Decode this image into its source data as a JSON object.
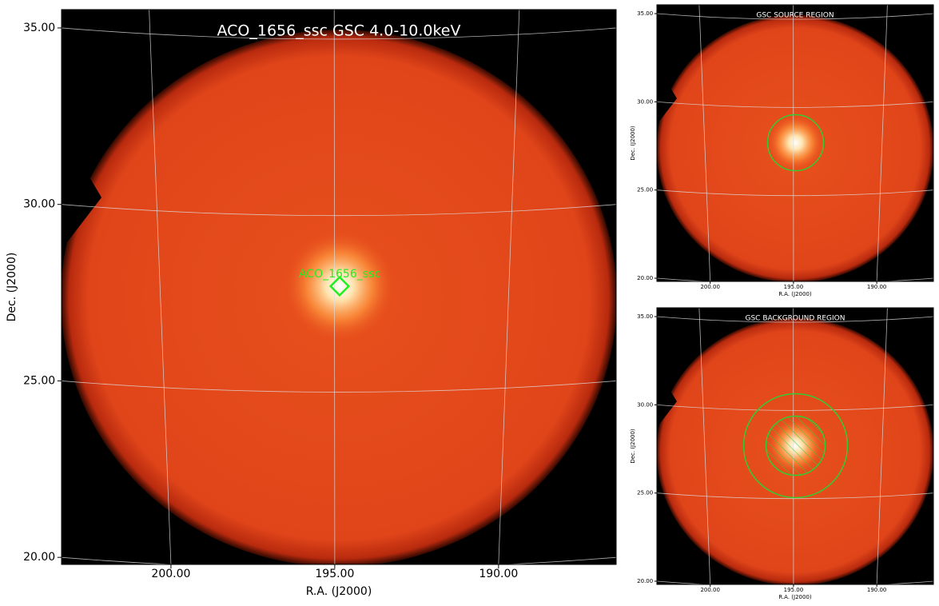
{
  "panels": [
    {
      "title": "ACO_1656_ssc GSC 4.0-10.0keV",
      "source_label": "ACO_1656_ssc",
      "xlabel": "R.A. (J2000)",
      "ylabel": "Dec. (J2000)",
      "xlim": [
        203.34,
        186.41
      ],
      "ylim": [
        19.8,
        35.52
      ],
      "xticks": [
        {
          "value": 200,
          "label": "200.00"
        },
        {
          "value": 195,
          "label": "195.00"
        },
        {
          "value": 190,
          "label": "190.00"
        }
      ],
      "yticks": [
        {
          "value": 20,
          "label": "20.00"
        },
        {
          "value": 25,
          "label": "25.00"
        },
        {
          "value": 30,
          "label": "30.00"
        },
        {
          "value": 35,
          "label": "35.00"
        }
      ]
    },
    {
      "title": "GSC SOURCE REGION",
      "xlabel": "R.A. (J2000)",
      "ylabel": "Dec. (J2000)",
      "xlim": [
        203.2,
        186.6
      ],
      "ylim": [
        19.82,
        35.5
      ],
      "xticks": [
        {
          "value": 200,
          "label": "200.00"
        },
        {
          "value": 195,
          "label": "195.00"
        },
        {
          "value": 190,
          "label": "190.00"
        }
      ],
      "yticks": [
        {
          "value": 20,
          "label": "20.00"
        },
        {
          "value": 25,
          "label": "25.00"
        },
        {
          "value": 30,
          "label": "30.00"
        },
        {
          "value": 35,
          "label": "35.00"
        }
      ]
    },
    {
      "title": "GSC BACKGROUND REGION",
      "xlabel": "R.A. (J2000)",
      "ylabel": "Dec. (J2000)",
      "xlim": [
        203.2,
        186.6
      ],
      "ylim": [
        19.82,
        35.5
      ],
      "xticks": [
        {
          "value": 200,
          "label": "200.00"
        },
        {
          "value": 195,
          "label": "195.00"
        },
        {
          "value": 190,
          "label": "190.00"
        }
      ],
      "yticks": [
        {
          "value": 20,
          "label": "20.00"
        },
        {
          "value": 25,
          "label": "25.00"
        },
        {
          "value": 30,
          "label": "30.00"
        },
        {
          "value": 35,
          "label": "35.00"
        }
      ]
    }
  ]
}
